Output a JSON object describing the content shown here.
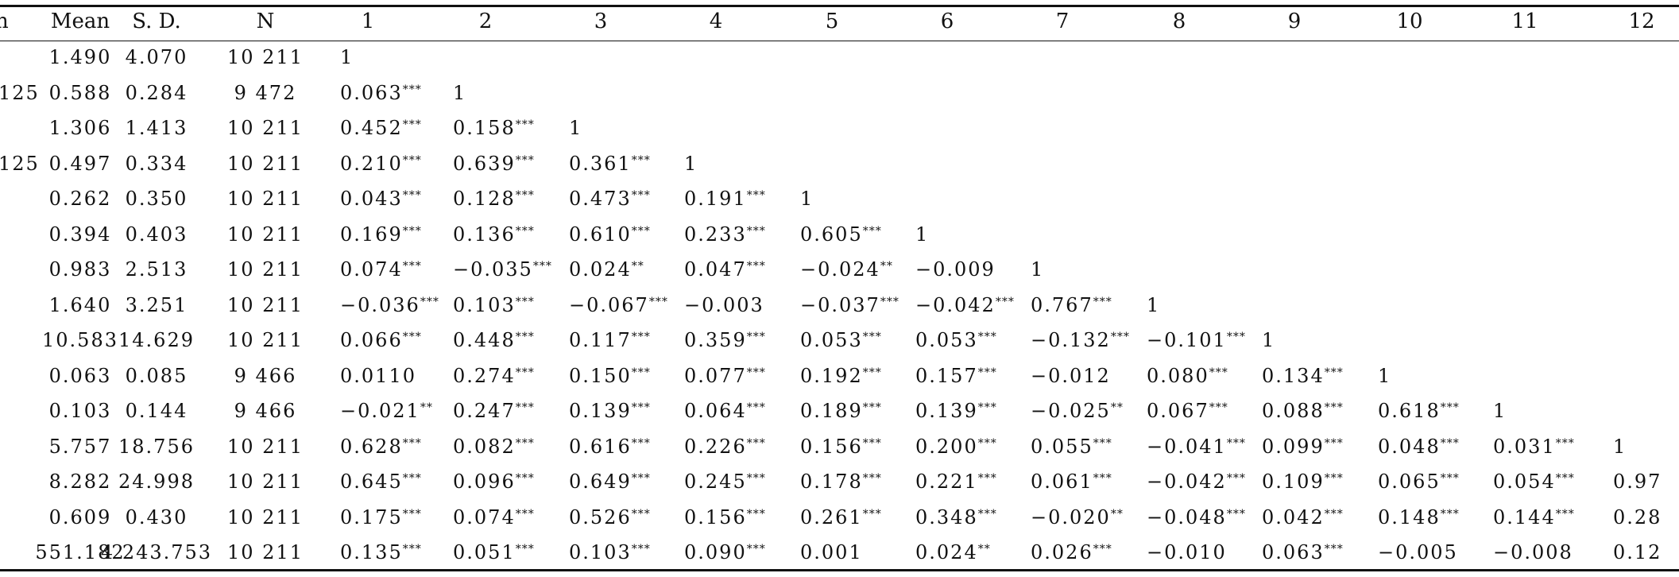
{
  "headers": [
    "n",
    "Mean",
    "S. D.",
    "N",
    "1",
    "2",
    "3",
    "4",
    "5",
    "6",
    "7",
    "8",
    "9",
    "10",
    "11",
    "12"
  ],
  "rows": [
    {
      "label": "",
      "mean": "1.490",
      "sd": "4.070",
      "n": "10 211",
      "corr": [
        [
          "1",
          ""
        ]
      ]
    },
    {
      "label": "125",
      "mean": "0.588",
      "sd": "0.284",
      "n": "9 472",
      "corr": [
        [
          "0.063",
          "***"
        ],
        [
          "1",
          ""
        ]
      ]
    },
    {
      "label": "",
      "mean": "1.306",
      "sd": "1.413",
      "n": "10 211",
      "corr": [
        [
          "0.452",
          "***"
        ],
        [
          "0.158",
          "***"
        ],
        [
          "1",
          ""
        ]
      ]
    },
    {
      "label": "125",
      "mean": "0.497",
      "sd": "0.334",
      "n": "10 211",
      "corr": [
        [
          "0.210",
          "***"
        ],
        [
          "0.639",
          "***"
        ],
        [
          "0.361",
          "***"
        ],
        [
          "1",
          ""
        ]
      ]
    },
    {
      "label": "",
      "mean": "0.262",
      "sd": "0.350",
      "n": "10 211",
      "corr": [
        [
          "0.043",
          "***"
        ],
        [
          "0.128",
          "***"
        ],
        [
          "0.473",
          "***"
        ],
        [
          "0.191",
          "***"
        ],
        [
          "1",
          ""
        ]
      ]
    },
    {
      "label": "",
      "mean": "0.394",
      "sd": "0.403",
      "n": "10 211",
      "corr": [
        [
          "0.169",
          "***"
        ],
        [
          "0.136",
          "***"
        ],
        [
          "0.610",
          "***"
        ],
        [
          "0.233",
          "***"
        ],
        [
          "0.605",
          "***"
        ],
        [
          "1",
          ""
        ]
      ]
    },
    {
      "label": "",
      "mean": "0.983",
      "sd": "2.513",
      "n": "10 211",
      "corr": [
        [
          "0.074",
          "***"
        ],
        [
          "−0.035",
          "***"
        ],
        [
          "0.024",
          "**"
        ],
        [
          "0.047",
          "***"
        ],
        [
          "−0.024",
          "**"
        ],
        [
          "−0.009",
          ""
        ],
        [
          "1",
          ""
        ]
      ]
    },
    {
      "label": "",
      "mean": "1.640",
      "sd": "3.251",
      "n": "10 211",
      "corr": [
        [
          "−0.036",
          "***"
        ],
        [
          "0.103",
          "***"
        ],
        [
          "−0.067",
          "***"
        ],
        [
          "−0.003",
          ""
        ],
        [
          "−0.037",
          "***"
        ],
        [
          "−0.042",
          "***"
        ],
        [
          "0.767",
          "***"
        ],
        [
          "1",
          ""
        ]
      ]
    },
    {
      "label": "",
      "mean": "10.583",
      "sd": "14.629",
      "n": "10 211",
      "corr": [
        [
          "0.066",
          "***"
        ],
        [
          "0.448",
          "***"
        ],
        [
          "0.117",
          "***"
        ],
        [
          "0.359",
          "***"
        ],
        [
          "0.053",
          "***"
        ],
        [
          "0.053",
          "***"
        ],
        [
          "−0.132",
          "***"
        ],
        [
          "−0.101",
          "***"
        ],
        [
          "1",
          ""
        ]
      ]
    },
    {
      "label": "",
      "mean": "0.063",
      "sd": "0.085",
      "n": "9 466",
      "corr": [
        [
          "0.0110",
          ""
        ],
        [
          "0.274",
          "***"
        ],
        [
          "0.150",
          "***"
        ],
        [
          "0.077",
          "***"
        ],
        [
          "0.192",
          "***"
        ],
        [
          "0.157",
          "***"
        ],
        [
          "−0.012",
          ""
        ],
        [
          "0.080",
          "***"
        ],
        [
          "0.134",
          "***"
        ],
        [
          "1",
          ""
        ]
      ]
    },
    {
      "label": "",
      "mean": "0.103",
      "sd": "0.144",
      "n": "9 466",
      "corr": [
        [
          "−0.021",
          "**"
        ],
        [
          "0.247",
          "***"
        ],
        [
          "0.139",
          "***"
        ],
        [
          "0.064",
          "***"
        ],
        [
          "0.189",
          "***"
        ],
        [
          "0.139",
          "***"
        ],
        [
          "−0.025",
          "**"
        ],
        [
          "0.067",
          "***"
        ],
        [
          "0.088",
          "***"
        ],
        [
          "0.618",
          "***"
        ],
        [
          "1",
          ""
        ]
      ]
    },
    {
      "label": "",
      "mean": "5.757",
      "sd": "18.756",
      "n": "10 211",
      "corr": [
        [
          "0.628",
          "***"
        ],
        [
          "0.082",
          "***"
        ],
        [
          "0.616",
          "***"
        ],
        [
          "0.226",
          "***"
        ],
        [
          "0.156",
          "***"
        ],
        [
          "0.200",
          "***"
        ],
        [
          "0.055",
          "***"
        ],
        [
          "−0.041",
          "***"
        ],
        [
          "0.099",
          "***"
        ],
        [
          "0.048",
          "***"
        ],
        [
          "0.031",
          "***"
        ],
        [
          "1",
          ""
        ]
      ]
    },
    {
      "label": "",
      "mean": "8.282",
      "sd": "24.998",
      "n": "10 211",
      "corr": [
        [
          "0.645",
          "***"
        ],
        [
          "0.096",
          "***"
        ],
        [
          "0.649",
          "***"
        ],
        [
          "0.245",
          "***"
        ],
        [
          "0.178",
          "***"
        ],
        [
          "0.221",
          "***"
        ],
        [
          "0.061",
          "***"
        ],
        [
          "−0.042",
          "***"
        ],
        [
          "0.109",
          "***"
        ],
        [
          "0.065",
          "***"
        ],
        [
          "0.054",
          "***"
        ],
        [
          "0.97",
          ""
        ]
      ]
    },
    {
      "label": "",
      "mean": "0.609",
      "sd": "0.430",
      "n": "10 211",
      "corr": [
        [
          "0.175",
          "***"
        ],
        [
          "0.074",
          "***"
        ],
        [
          "0.526",
          "***"
        ],
        [
          "0.156",
          "***"
        ],
        [
          "0.261",
          "***"
        ],
        [
          "0.348",
          "***"
        ],
        [
          "−0.020",
          "**"
        ],
        [
          "−0.048",
          "***"
        ],
        [
          "0.042",
          "***"
        ],
        [
          "0.148",
          "***"
        ],
        [
          "0.144",
          "***"
        ],
        [
          "0.28",
          ""
        ]
      ]
    },
    {
      "label": "",
      "mean": "551.182",
      "sd": "4 243.753",
      "n": "10 211",
      "corr": [
        [
          "0.135",
          "***"
        ],
        [
          "0.051",
          "***"
        ],
        [
          "0.103",
          "***"
        ],
        [
          "0.090",
          "***"
        ],
        [
          "0.001",
          ""
        ],
        [
          "0.024",
          "**"
        ],
        [
          "0.026",
          "***"
        ],
        [
          "−0.010",
          ""
        ],
        [
          "0.063",
          "***"
        ],
        [
          "−0.005",
          ""
        ],
        [
          "−0.008",
          ""
        ],
        [
          "0.12",
          ""
        ]
      ]
    }
  ]
}
